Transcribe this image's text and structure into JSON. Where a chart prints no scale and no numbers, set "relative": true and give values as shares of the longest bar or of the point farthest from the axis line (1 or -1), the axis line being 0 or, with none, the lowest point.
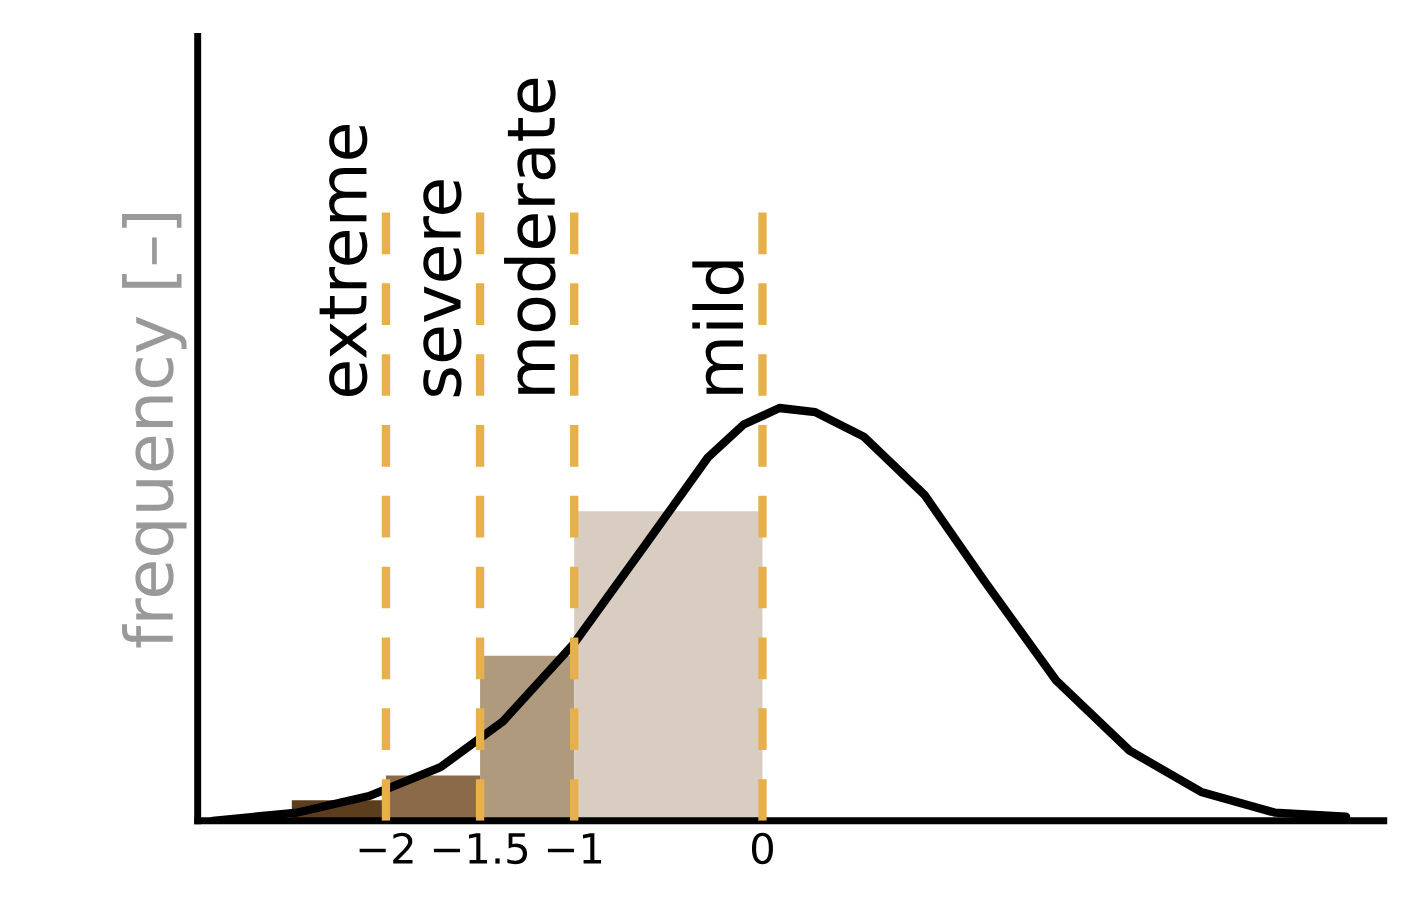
{
  "chart_data": {
    "type": "histogram",
    "relative": true,
    "ylabel": "frequency [–]",
    "bins": [
      -2.5,
      -2,
      -1.5,
      -1,
      0
    ],
    "values": [
      0.05,
      0.11,
      0.4,
      0.75
    ],
    "colors": [
      "#5c3d1e",
      "#8a6a48",
      "#b09a7e",
      "#d8cdc0"
    ],
    "series": [
      {
        "type": "line",
        "color": "#000000",
        "x": [
          -2.92,
          -2.47,
          -2.09,
          -1.71,
          -1.38,
          -1.0,
          -0.62,
          -0.29,
          -0.1,
          0.09,
          0.28,
          0.54,
          0.86,
          1.18,
          1.56,
          1.95,
          2.33,
          2.72,
          3.1
        ],
        "values": [
          0,
          0.02,
          0.06,
          0.13,
          0.24,
          0.43,
          0.67,
          0.88,
          0.96,
          1,
          0.99,
          0.93,
          0.79,
          0.58,
          0.34,
          0.17,
          0.07,
          0.02,
          0.01
        ]
      }
    ],
    "ref_lines": [
      {
        "axis": "x",
        "value": -2,
        "label": "extreme",
        "color": "#e8b04a",
        "line_style": "dashed"
      },
      {
        "axis": "x",
        "value": -1.5,
        "label": "severe",
        "color": "#e8b04a",
        "line_style": "dashed"
      },
      {
        "axis": "x",
        "value": -1,
        "label": "moderate",
        "color": "#e8b04a",
        "line_style": "dashed"
      },
      {
        "axis": "x",
        "value": 0,
        "label": "mild",
        "color": "#e8b04a",
        "line_style": "dashed"
      }
    ],
    "xlim": [
      -3.0,
      3.3
    ],
    "xticks": [
      {
        "value": -2,
        "label": "−2"
      },
      {
        "value": -1.5,
        "label": "−1.5"
      },
      {
        "value": -1,
        "label": "−1"
      },
      {
        "value": 0,
        "label": "0"
      }
    ],
    "tick_labels": "x",
    "grid": false,
    "legend": false
  }
}
